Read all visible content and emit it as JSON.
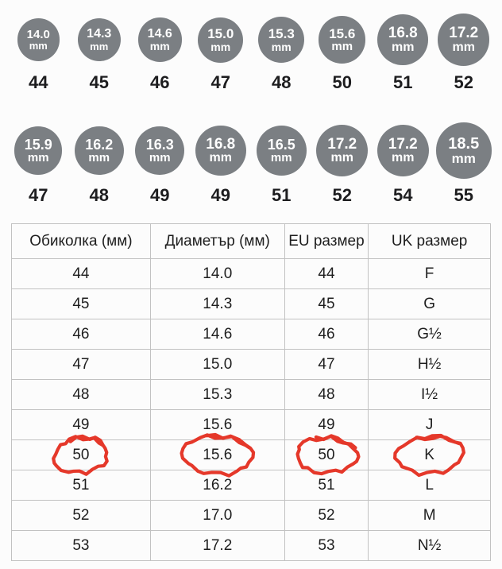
{
  "unit_label": "mm",
  "colors": {
    "background": "#fcfcfc",
    "circle_fill": "#7b7f83",
    "circle_text": "#ffffff",
    "label_text": "#1d1d1f",
    "table_text": "#1e1e1e",
    "table_border": "#c2c2c2",
    "annotation_red": "#e5382a"
  },
  "chart_data": [
    {
      "type": "table",
      "name": "ring-diameter-row-top",
      "columns": [
        "diameter_mm",
        "eu_size"
      ],
      "rows": [
        [
          "14.0",
          "44"
        ],
        [
          "14.3",
          "45"
        ],
        [
          "14.6",
          "46"
        ],
        [
          "15.0",
          "47"
        ],
        [
          "15.3",
          "48"
        ],
        [
          "15.6",
          "50"
        ],
        [
          "16.8",
          "51"
        ],
        [
          "17.2",
          "52"
        ]
      ]
    },
    {
      "type": "table",
      "name": "ring-diameter-row-bottom",
      "columns": [
        "diameter_mm",
        "eu_size"
      ],
      "rows": [
        [
          "15.9",
          "47"
        ],
        [
          "16.2",
          "48"
        ],
        [
          "16.3",
          "49"
        ],
        [
          "16.8",
          "49"
        ],
        [
          "16.5",
          "51"
        ],
        [
          "17.2",
          "52"
        ],
        [
          "17.2",
          "54"
        ],
        [
          "18.5",
          "55"
        ]
      ]
    },
    {
      "type": "table",
      "name": "size-conversion-table",
      "columns": [
        "Обиколка (мм)",
        "Диаметър (мм)",
        "EU размер",
        "UK размер"
      ],
      "rows": [
        [
          "44",
          "14.0",
          "44",
          "F"
        ],
        [
          "45",
          "14.3",
          "45",
          "G"
        ],
        [
          "46",
          "14.6",
          "46",
          "G½"
        ],
        [
          "47",
          "15.0",
          "47",
          "H½"
        ],
        [
          "48",
          "15.3",
          "48",
          "I½"
        ],
        [
          "49",
          "15.6",
          "49",
          "J"
        ],
        [
          "50",
          "15.6",
          "50",
          "K"
        ],
        [
          "51",
          "16.2",
          "51",
          "L"
        ],
        [
          "52",
          "17.0",
          "52",
          "M"
        ],
        [
          "53",
          "17.2",
          "53",
          "N½"
        ]
      ],
      "highlighted_row_index": 6,
      "highlighted_values": [
        "50",
        "15.6",
        "50",
        "K"
      ]
    }
  ]
}
